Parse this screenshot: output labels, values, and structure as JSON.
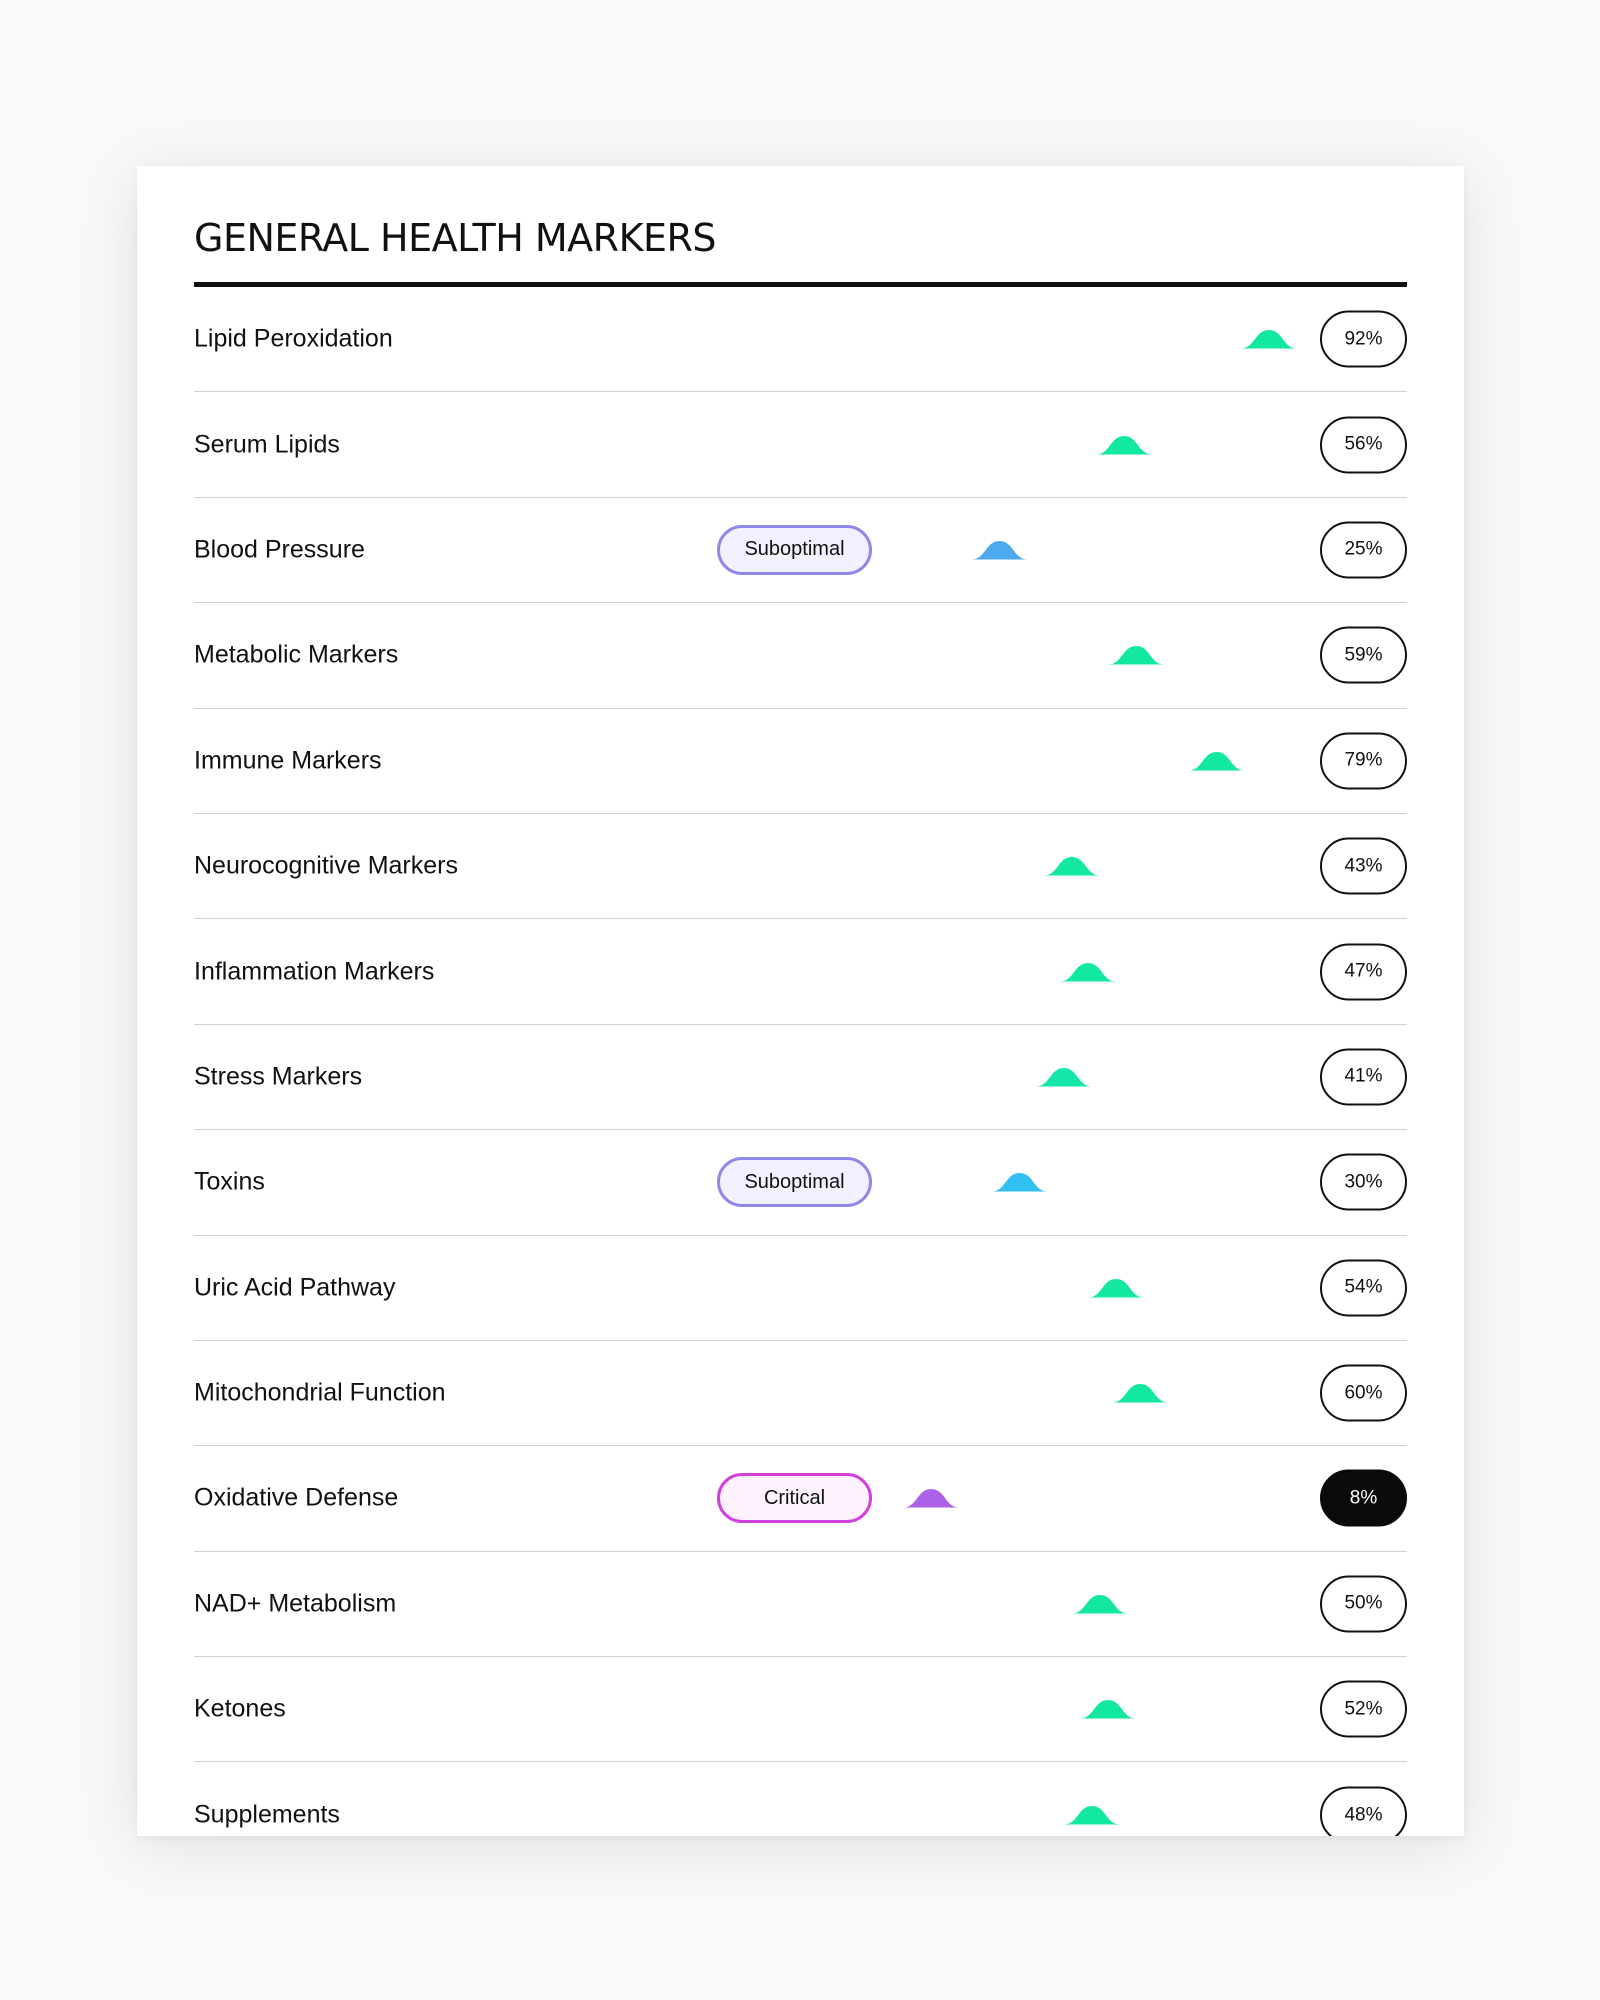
{
  "title": "GENERAL HEALTH MARKERS",
  "colors": {
    "gradient_start": "#d83ee2",
    "gradient_mid": "#27c8f3",
    "gradient_end": "#12e8a0",
    "suboptimal_border": "#8f88e6",
    "critical_border": "#d13fdc"
  },
  "markers": [
    {
      "name": "Lipid Peroxidation",
      "value": 92,
      "value_label": "92%",
      "badge": ""
    },
    {
      "name": "Serum Lipids",
      "value": 56,
      "value_label": "56%",
      "badge": ""
    },
    {
      "name": "Blood Pressure",
      "value": 25,
      "value_label": "25%",
      "badge": "Suboptimal"
    },
    {
      "name": "Metabolic Markers",
      "value": 59,
      "value_label": "59%",
      "badge": ""
    },
    {
      "name": "Immune Markers",
      "value": 79,
      "value_label": "79%",
      "badge": ""
    },
    {
      "name": "Neurocognitive Markers",
      "value": 43,
      "value_label": "43%",
      "badge": ""
    },
    {
      "name": "Inflammation Markers",
      "value": 47,
      "value_label": "47%",
      "badge": ""
    },
    {
      "name": "Stress Markers",
      "value": 41,
      "value_label": "41%",
      "badge": ""
    },
    {
      "name": "Toxins",
      "value": 30,
      "value_label": "30%",
      "badge": "Suboptimal"
    },
    {
      "name": "Uric Acid Pathway",
      "value": 54,
      "value_label": "54%",
      "badge": ""
    },
    {
      "name": "Mitochondrial Function",
      "value": 60,
      "value_label": "60%",
      "badge": ""
    },
    {
      "name": "Oxidative Defense",
      "value": 8,
      "value_label": "8%",
      "badge": "Critical"
    },
    {
      "name": "NAD+ Metabolism",
      "value": 50,
      "value_label": "50%",
      "badge": ""
    },
    {
      "name": "Ketones",
      "value": 52,
      "value_label": "52%",
      "badge": ""
    },
    {
      "name": "Supplements",
      "value": 48,
      "value_label": "48%",
      "badge": ""
    }
  ]
}
